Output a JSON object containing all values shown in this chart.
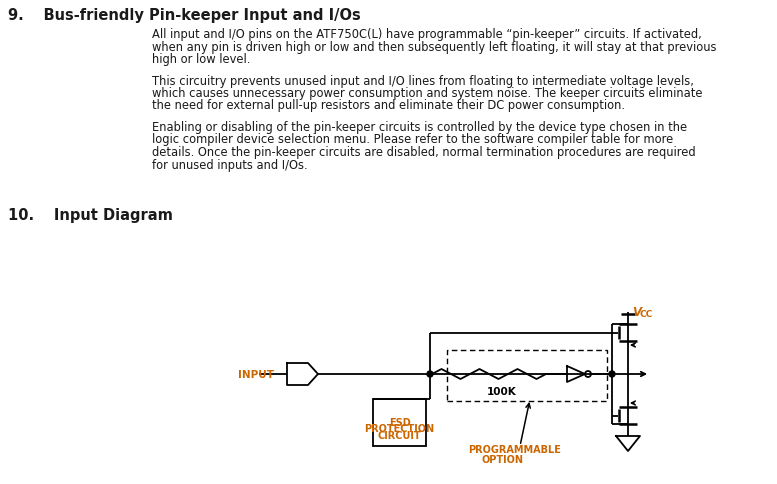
{
  "title9": "9.  Bus-friendly Pin-keeper Input and I/Os",
  "para1_lines": [
    "All input and I/O pins on the ATF750C(L) have programmable “pin-keeper” circuits. If activated,",
    "when any pin is driven high or low and then subsequently left floating, it will stay at that previous",
    "high or low level."
  ],
  "para2_lines": [
    "This circuitry prevents unused input and I/O lines from floating to intermediate voltage levels,",
    "which causes unnecessary power consumption and system noise. The keeper circuits eliminate",
    "the need for external pull-up resistors and eliminate their DC power consumption."
  ],
  "para3_lines": [
    "Enabling or disabling of the pin-keeper circuits is controlled by the device type chosen in the",
    "logic compiler device selection menu. Please refer to the software compiler table for more",
    "details. Once the pin-keeper circuits are disabled, normal termination procedures are required",
    "for unused inputs and I/Os."
  ],
  "title10": "10.  Input Diagram",
  "label_input": "INPUT",
  "label_esd1": "ESD",
  "label_esd2": "PROTECTION",
  "label_esd3": "CIRCUIT",
  "label_100k": "100K",
  "label_prog1": "PROGRAMMABLE",
  "label_prog2": "OPTION",
  "label_vcc": "V",
  "label_vcc_sub": "CC",
  "heading_color": "#1a1a1a",
  "body_color": "#1a1a1a",
  "circuit_color": "#1a1a1a",
  "orange_color": "#cc6600",
  "bg_color": "#ffffff"
}
